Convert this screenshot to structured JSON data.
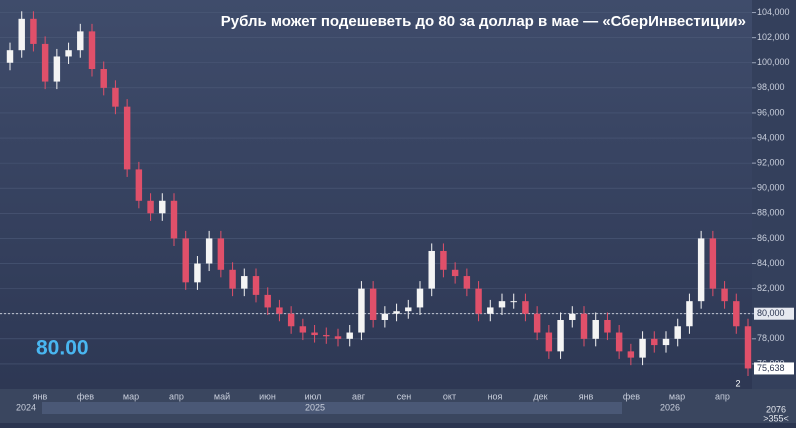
{
  "chart_data": {
    "type": "candlestick",
    "title": "Рубль может подешеветь до 80 за доллар в мае — «СберИнвестиции»",
    "annotation": "80.00",
    "open": [
      100000,
      101000,
      103500,
      101500,
      98500,
      100500,
      101000,
      102500,
      99500,
      98000,
      96500,
      91500,
      89000,
      88000,
      89000,
      86000,
      82500,
      84000,
      86000,
      83500,
      82000,
      83000,
      81500,
      80500,
      80000,
      79000,
      78500,
      78300,
      78200,
      78000,
      78500,
      82000,
      79500,
      80000,
      80200,
      80500,
      82000,
      85000,
      83500,
      83000,
      82000,
      80000,
      80500,
      81000,
      81000,
      80000,
      78500,
      77000,
      79500,
      80000,
      78000,
      79500,
      78500,
      77000,
      76500,
      78000,
      77500,
      78000,
      79000,
      81000,
      86000,
      82000,
      81000,
      79000
    ],
    "high": [
      101600,
      104100,
      104100,
      102100,
      101100,
      101600,
      103100,
      103100,
      100100,
      98600,
      97100,
      92100,
      89600,
      89600,
      89600,
      86600,
      84600,
      86600,
      86600,
      84100,
      83600,
      83600,
      82100,
      81100,
      80600,
      79600,
      79100,
      78900,
      78800,
      79100,
      82600,
      82600,
      80600,
      80800,
      81100,
      82600,
      85600,
      85600,
      84100,
      83600,
      82600,
      81100,
      81600,
      81600,
      81600,
      80600,
      79100,
      80100,
      80600,
      80600,
      80100,
      80100,
      79100,
      77600,
      78600,
      78600,
      78600,
      79600,
      81600,
      86600,
      86600,
      82600,
      81600,
      79600
    ],
    "low": [
      99400,
      100400,
      100900,
      97900,
      97900,
      99900,
      100400,
      98900,
      97400,
      95900,
      90900,
      88400,
      87400,
      87400,
      85400,
      81900,
      81900,
      83400,
      82900,
      81400,
      81400,
      80900,
      79900,
      79400,
      78400,
      77900,
      77700,
      77600,
      77400,
      77400,
      77900,
      78900,
      78900,
      79400,
      79600,
      79900,
      81400,
      82900,
      82400,
      81400,
      79400,
      79400,
      79900,
      80400,
      79400,
      77900,
      76400,
      76400,
      78900,
      77400,
      77400,
      77900,
      76400,
      75900,
      75900,
      76900,
      76900,
      77400,
      78400,
      80400,
      81400,
      80400,
      78400,
      75038
    ],
    "close": [
      101000,
      103500,
      101500,
      98500,
      100500,
      101000,
      102500,
      99500,
      98000,
      96500,
      91500,
      89000,
      88000,
      89000,
      86000,
      82500,
      84000,
      86000,
      83500,
      82000,
      83000,
      81500,
      80500,
      80000,
      79000,
      78500,
      78300,
      78200,
      78000,
      78500,
      82000,
      79500,
      80000,
      80200,
      80500,
      82000,
      85000,
      83500,
      83000,
      82000,
      80000,
      80500,
      81000,
      81000,
      80000,
      78500,
      77000,
      79500,
      80000,
      78000,
      79500,
      78500,
      77000,
      76500,
      78000,
      77500,
      78000,
      79000,
      81000,
      86000,
      82000,
      81000,
      79000,
      75638
    ],
    "up_color": "#f4f4f4",
    "down_color": "#e0506a",
    "last_label": "75,638",
    "price_line": {
      "value": 80000,
      "label": "80,000"
    },
    "ylim": [
      74000,
      105000
    ],
    "yticks": [
      {
        "value": 76000,
        "label": "76,000"
      },
      {
        "value": 78000,
        "label": "78,000"
      },
      {
        "value": 80000,
        "label": "80,000"
      },
      {
        "value": 82000,
        "label": "82,000"
      },
      {
        "value": 84000,
        "label": "84,000"
      },
      {
        "value": 86000,
        "label": "86,000"
      },
      {
        "value": 88000,
        "label": "88,000"
      },
      {
        "value": 90000,
        "label": "90,000"
      },
      {
        "value": 92000,
        "label": "92,000"
      },
      {
        "value": 94000,
        "label": "94,000"
      },
      {
        "value": 96000,
        "label": "96,000"
      },
      {
        "value": 98000,
        "label": "98,000"
      },
      {
        "value": 100000,
        "label": "100,000"
      },
      {
        "value": 102000,
        "label": "102,000"
      },
      {
        "value": 104000,
        "label": "104,000"
      }
    ],
    "month_labels": [
      "янв",
      "фев",
      "мар",
      "апр",
      "май",
      "июн",
      "июл",
      "авг",
      "сен",
      "окт",
      "ноя",
      "дек",
      "янв",
      "фев",
      "мар",
      "апр"
    ],
    "year_labels": [
      "2024",
      "2025",
      "2026"
    ],
    "corner_mark": "2",
    "footer_left": "2076",
    "footer_right": ">355<"
  }
}
